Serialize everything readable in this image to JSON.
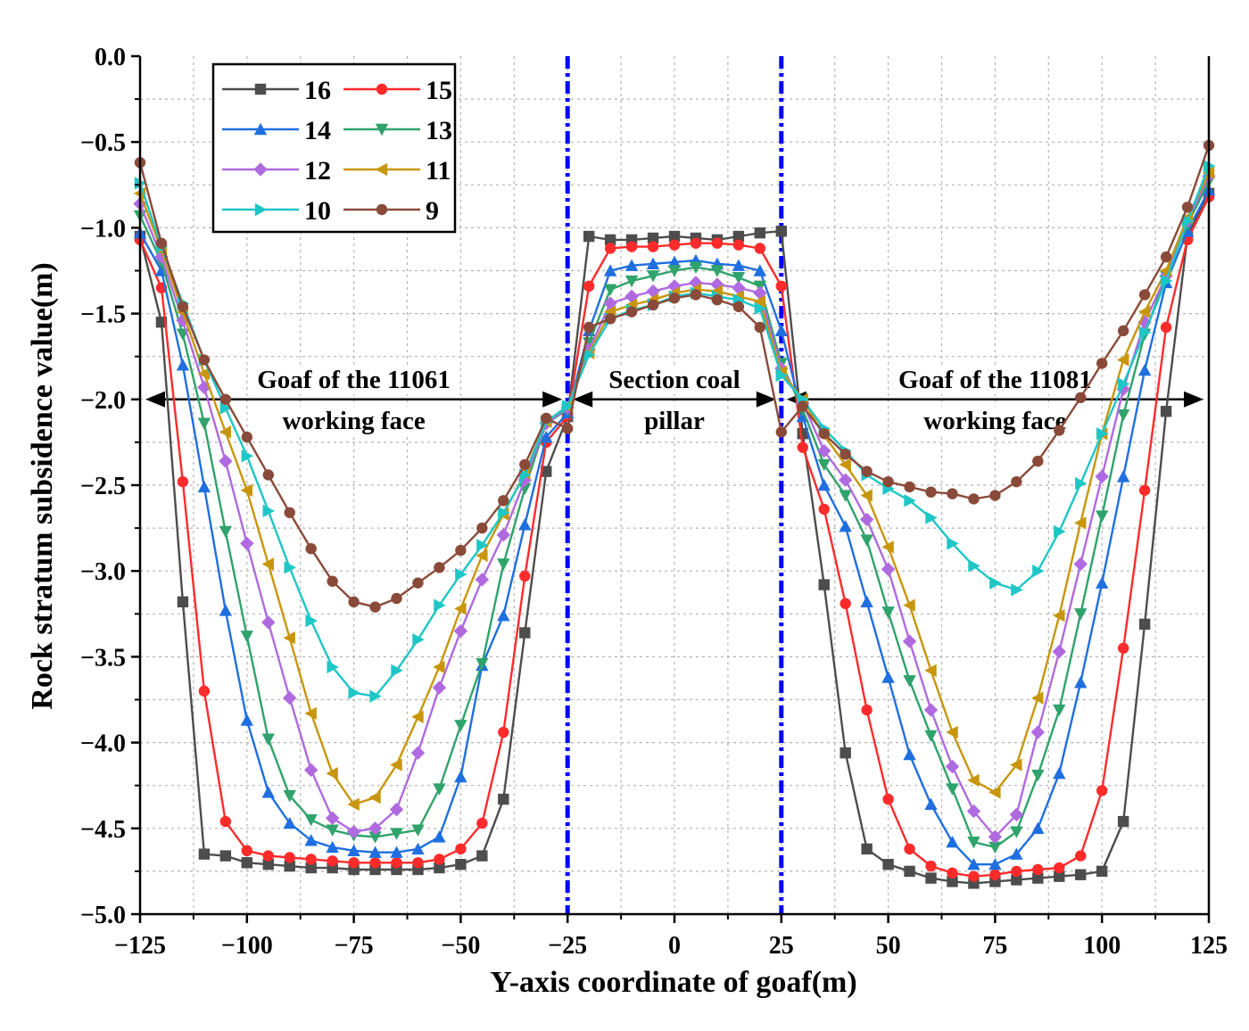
{
  "chart_data": {
    "type": "line",
    "xlabel": "Y-axis coordinate of goaf(m)",
    "ylabel": "Rock stratum subsidence value(m)",
    "xlim": [
      -125,
      125
    ],
    "ylim": [
      -5.0,
      0.0
    ],
    "xticks": [
      -125,
      -100,
      -75,
      -50,
      -25,
      0,
      25,
      50,
      75,
      100,
      125
    ],
    "xtick_labels": [
      "−125",
      "−100",
      "−75",
      "−50",
      "−25",
      "0",
      "25",
      "50",
      "75",
      "100",
      "125"
    ],
    "yticks": [
      0.0,
      -0.5,
      -1.0,
      -1.5,
      -2.0,
      -2.5,
      -3.0,
      -3.5,
      -4.0,
      -4.5,
      -5.0
    ],
    "ytick_labels": [
      "0.0",
      "−0.5",
      "−1.0",
      "−1.5",
      "−2.0",
      "−2.5",
      "−3.0",
      "−3.5",
      "−4.0",
      "−4.5",
      "−5.0"
    ],
    "grid": true,
    "legend_position": "top-left",
    "vlines": [
      -25,
      25
    ],
    "vline_color": "#0000ff",
    "annotations": [
      {
        "lines": [
          "Goaf of the 11061",
          "working face"
        ],
        "x_range": [
          -125,
          -25
        ],
        "y": -2.0
      },
      {
        "lines": [
          "Section coal",
          "pillar"
        ],
        "x_range": [
          -25,
          25
        ],
        "y": -2.0
      },
      {
        "lines": [
          "Goaf of the 11081",
          "working face"
        ],
        "x_range": [
          25,
          125
        ],
        "y": -2.0
      }
    ],
    "x": [
      -125,
      -120,
      -115,
      -110,
      -105,
      -100,
      -95,
      -90,
      -85,
      -80,
      -75,
      -70,
      -65,
      -60,
      -55,
      -50,
      -45,
      -40,
      -35,
      -30,
      -25,
      -20,
      -15,
      -10,
      -5,
      0,
      5,
      10,
      15,
      20,
      25,
      30,
      35,
      40,
      45,
      50,
      55,
      60,
      65,
      70,
      75,
      80,
      85,
      90,
      95,
      100,
      105,
      110,
      115,
      120,
      125
    ],
    "series": [
      {
        "name": "16",
        "color": "#4d4d4d",
        "marker": "square",
        "values": [
          -1.05,
          -1.55,
          -3.18,
          -4.65,
          -4.66,
          -4.7,
          -4.71,
          -4.72,
          -4.73,
          -4.73,
          -4.74,
          -4.74,
          -4.74,
          -4.74,
          -4.73,
          -4.71,
          -4.66,
          -4.33,
          -3.36,
          -2.42,
          -2.1,
          -1.05,
          -1.07,
          -1.07,
          -1.06,
          -1.05,
          -1.06,
          -1.07,
          -1.05,
          -1.03,
          -1.02,
          -2.2,
          -3.08,
          -4.06,
          -4.62,
          -4.71,
          -4.75,
          -4.79,
          -4.81,
          -4.82,
          -4.81,
          -4.8,
          -4.79,
          -4.78,
          -4.77,
          -4.75,
          -4.46,
          -3.31,
          -2.07,
          -1.05,
          -0.8
        ]
      },
      {
        "name": "15",
        "color": "#ff2b2b",
        "marker": "circle",
        "values": [
          -1.07,
          -1.35,
          -2.48,
          -3.7,
          -4.46,
          -4.63,
          -4.66,
          -4.67,
          -4.68,
          -4.69,
          -4.7,
          -4.7,
          -4.7,
          -4.7,
          -4.68,
          -4.62,
          -4.47,
          -3.94,
          -3.03,
          -2.25,
          -2.1,
          -1.34,
          -1.12,
          -1.11,
          -1.11,
          -1.1,
          -1.09,
          -1.09,
          -1.1,
          -1.12,
          -1.34,
          -2.28,
          -2.64,
          -3.19,
          -3.81,
          -4.33,
          -4.62,
          -4.72,
          -4.76,
          -4.78,
          -4.77,
          -4.75,
          -4.74,
          -4.73,
          -4.66,
          -4.28,
          -3.45,
          -2.53,
          -1.58,
          -1.07,
          -0.82
        ]
      },
      {
        "name": "14",
        "color": "#1f6fe0",
        "marker": "triangle-up",
        "values": [
          -1.03,
          -1.25,
          -1.8,
          -2.51,
          -3.23,
          -3.87,
          -4.29,
          -4.47,
          -4.57,
          -4.61,
          -4.63,
          -4.64,
          -4.64,
          -4.62,
          -4.55,
          -4.2,
          -3.55,
          -3.26,
          -2.73,
          -2.22,
          -2.08,
          -1.6,
          -1.25,
          -1.22,
          -1.21,
          -1.2,
          -1.19,
          -1.21,
          -1.22,
          -1.25,
          -1.6,
          -2.1,
          -2.5,
          -2.74,
          -3.18,
          -3.62,
          -4.07,
          -4.36,
          -4.58,
          -4.71,
          -4.71,
          -4.65,
          -4.5,
          -4.18,
          -3.65,
          -3.07,
          -2.45,
          -1.83,
          -1.32,
          -1.02,
          -0.78
        ]
      },
      {
        "name": "13",
        "color": "#2fa36b",
        "marker": "triangle-down",
        "values": [
          -0.93,
          -1.2,
          -1.62,
          -2.14,
          -2.77,
          -3.38,
          -3.98,
          -4.31,
          -4.45,
          -4.51,
          -4.54,
          -4.55,
          -4.53,
          -4.51,
          -4.27,
          -3.9,
          -3.54,
          -2.96,
          -2.52,
          -2.14,
          -2.06,
          -1.67,
          -1.36,
          -1.31,
          -1.28,
          -1.25,
          -1.23,
          -1.25,
          -1.29,
          -1.34,
          -1.79,
          -2.06,
          -2.38,
          -2.56,
          -2.82,
          -3.24,
          -3.64,
          -3.96,
          -4.27,
          -4.58,
          -4.61,
          -4.52,
          -4.19,
          -3.81,
          -3.25,
          -2.68,
          -2.09,
          -1.62,
          -1.28,
          -0.98,
          -0.73
        ]
      },
      {
        "name": "12",
        "color": "#b06ae0",
        "marker": "diamond",
        "values": [
          -0.86,
          -1.17,
          -1.54,
          -1.93,
          -2.36,
          -2.84,
          -3.3,
          -3.74,
          -4.16,
          -4.44,
          -4.52,
          -4.5,
          -4.39,
          -4.06,
          -3.68,
          -3.35,
          -3.05,
          -2.79,
          -2.47,
          -2.14,
          -2.05,
          -1.71,
          -1.44,
          -1.4,
          -1.37,
          -1.34,
          -1.32,
          -1.33,
          -1.35,
          -1.38,
          -1.82,
          -2.02,
          -2.3,
          -2.47,
          -2.7,
          -2.99,
          -3.41,
          -3.81,
          -4.14,
          -4.4,
          -4.55,
          -4.42,
          -3.94,
          -3.47,
          -2.96,
          -2.45,
          -1.94,
          -1.55,
          -1.28,
          -0.96,
          -0.7
        ]
      },
      {
        "name": "11",
        "color": "#c8960c",
        "marker": "triangle-left",
        "values": [
          -0.8,
          -1.13,
          -1.49,
          -1.85,
          -2.19,
          -2.53,
          -2.96,
          -3.39,
          -3.83,
          -4.18,
          -4.36,
          -4.32,
          -4.13,
          -3.85,
          -3.56,
          -3.22,
          -2.91,
          -2.67,
          -2.43,
          -2.13,
          -2.04,
          -1.73,
          -1.49,
          -1.45,
          -1.42,
          -1.38,
          -1.36,
          -1.37,
          -1.4,
          -1.43,
          -1.84,
          -2.0,
          -2.21,
          -2.38,
          -2.56,
          -2.86,
          -3.2,
          -3.58,
          -3.94,
          -4.22,
          -4.29,
          -4.13,
          -3.74,
          -3.26,
          -2.72,
          -2.2,
          -1.77,
          -1.49,
          -1.25,
          -0.94,
          -0.68
        ]
      },
      {
        "name": "10",
        "color": "#1ec6c6",
        "marker": "triangle-right",
        "values": [
          -0.74,
          -1.11,
          -1.44,
          -1.77,
          -2.05,
          -2.33,
          -2.65,
          -2.98,
          -3.29,
          -3.56,
          -3.71,
          -3.73,
          -3.58,
          -3.4,
          -3.2,
          -3.02,
          -2.85,
          -2.66,
          -2.44,
          -2.13,
          -2.04,
          -1.74,
          -1.53,
          -1.48,
          -1.45,
          -1.4,
          -1.38,
          -1.4,
          -1.42,
          -1.47,
          -1.86,
          -2.0,
          -2.17,
          -2.3,
          -2.44,
          -2.52,
          -2.59,
          -2.69,
          -2.84,
          -2.97,
          -3.07,
          -3.11,
          -3.0,
          -2.77,
          -2.49,
          -2.2,
          -1.91,
          -1.61,
          -1.31,
          -0.96,
          -0.64
        ]
      },
      {
        "name": "9",
        "color": "#8a4a3a",
        "marker": "circle",
        "values": [
          -0.62,
          -1.09,
          -1.46,
          -1.77,
          -2.0,
          -2.22,
          -2.44,
          -2.66,
          -2.87,
          -3.06,
          -3.18,
          -3.21,
          -3.16,
          -3.07,
          -2.98,
          -2.88,
          -2.75,
          -2.59,
          -2.38,
          -2.11,
          -2.17,
          -1.58,
          -1.53,
          -1.49,
          -1.45,
          -1.41,
          -1.39,
          -1.42,
          -1.46,
          -1.58,
          -2.19,
          -2.04,
          -2.2,
          -2.32,
          -2.42,
          -2.48,
          -2.51,
          -2.54,
          -2.55,
          -2.58,
          -2.56,
          -2.48,
          -2.36,
          -2.18,
          -1.99,
          -1.79,
          -1.6,
          -1.39,
          -1.17,
          -0.88,
          -0.52
        ]
      }
    ]
  }
}
